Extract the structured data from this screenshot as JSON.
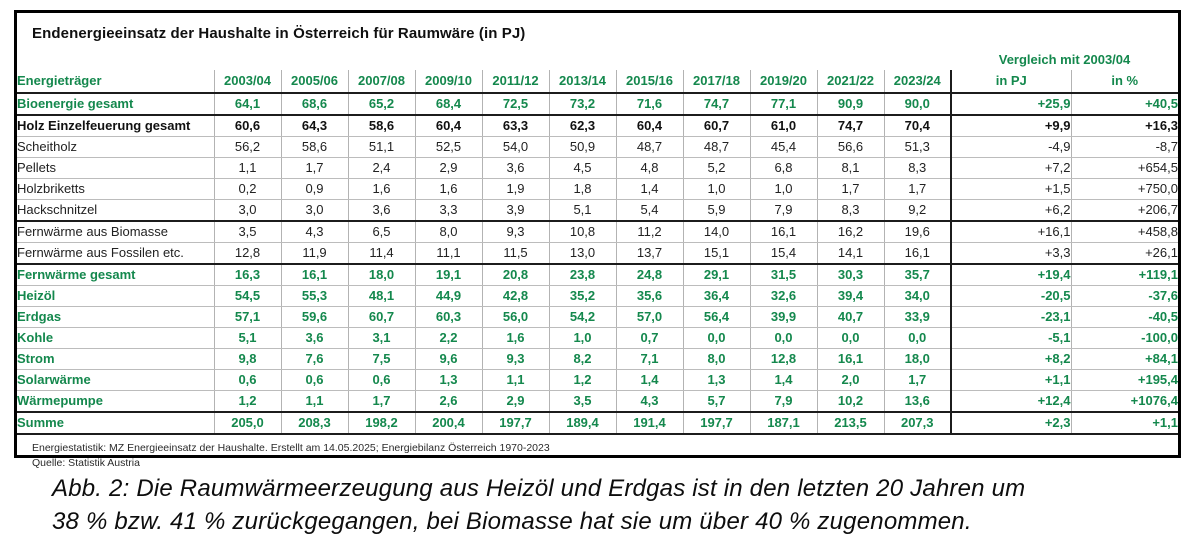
{
  "table": {
    "title": "Endenergieeinsatz der Haushalte in Österreich für Raumwäre (in PJ)",
    "label_header": "Energieträger",
    "year_columns": [
      "2003/04",
      "2005/06",
      "2007/08",
      "2009/10",
      "2011/12",
      "2013/14",
      "2015/16",
      "2017/18",
      "2019/20",
      "2021/22",
      "2023/24"
    ],
    "compare_header": "Vergleich mit 2003/04",
    "compare_sub_headers": [
      "in PJ",
      "in %"
    ],
    "rows": [
      {
        "label": "Bioenergie gesamt",
        "style": "green",
        "values": [
          "64,1",
          "68,6",
          "65,2",
          "68,4",
          "72,5",
          "73,2",
          "71,6",
          "74,7",
          "77,1",
          "90,9",
          "90,0"
        ],
        "pj": "+25,9",
        "pct": "+40,5",
        "thick_below": true
      },
      {
        "label": "Holz Einzelfeuerung gesamt",
        "style": "bold",
        "values": [
          "60,6",
          "64,3",
          "58,6",
          "60,4",
          "63,3",
          "62,3",
          "60,4",
          "60,7",
          "61,0",
          "74,7",
          "70,4"
        ],
        "pj": "+9,9",
        "pct": "+16,3",
        "thick_below": false
      },
      {
        "label": "Scheitholz",
        "style": "plain",
        "values": [
          "56,2",
          "58,6",
          "51,1",
          "52,5",
          "54,0",
          "50,9",
          "48,7",
          "48,7",
          "45,4",
          "56,6",
          "51,3"
        ],
        "pj": "-4,9",
        "pct": "-8,7",
        "thick_below": false
      },
      {
        "label": "Pellets",
        "style": "plain",
        "values": [
          "1,1",
          "1,7",
          "2,4",
          "2,9",
          "3,6",
          "4,5",
          "4,8",
          "5,2",
          "6,8",
          "8,1",
          "8,3"
        ],
        "pj": "+7,2",
        "pct": "+654,5",
        "thick_below": false
      },
      {
        "label": "Holzbriketts",
        "style": "plain",
        "values": [
          "0,2",
          "0,9",
          "1,6",
          "1,6",
          "1,9",
          "1,8",
          "1,4",
          "1,0",
          "1,0",
          "1,7",
          "1,7"
        ],
        "pj": "+1,5",
        "pct": "+750,0",
        "thick_below": false
      },
      {
        "label": "Hackschnitzel",
        "style": "plain",
        "values": [
          "3,0",
          "3,0",
          "3,6",
          "3,3",
          "3,9",
          "5,1",
          "5,4",
          "5,9",
          "7,9",
          "8,3",
          "9,2"
        ],
        "pj": "+6,2",
        "pct": "+206,7",
        "thick_below": true
      },
      {
        "label": "Fernwärme aus Biomasse",
        "style": "plain",
        "values": [
          "3,5",
          "4,3",
          "6,5",
          "8,0",
          "9,3",
          "10,8",
          "11,2",
          "14,0",
          "16,1",
          "16,2",
          "19,6"
        ],
        "pj": "+16,1",
        "pct": "+458,8",
        "thick_below": false
      },
      {
        "label": "Fernwärme aus Fossilen etc.",
        "style": "plain",
        "values": [
          "12,8",
          "11,9",
          "11,4",
          "11,1",
          "11,5",
          "13,0",
          "13,7",
          "15,1",
          "15,4",
          "14,1",
          "16,1"
        ],
        "pj": "+3,3",
        "pct": "+26,1",
        "thick_below": true
      },
      {
        "label": "Fernwärme gesamt",
        "style": "green",
        "values": [
          "16,3",
          "16,1",
          "18,0",
          "19,1",
          "20,8",
          "23,8",
          "24,8",
          "29,1",
          "31,5",
          "30,3",
          "35,7"
        ],
        "pj": "+19,4",
        "pct": "+119,1",
        "thick_below": false
      },
      {
        "label": "Heizöl",
        "style": "green",
        "values": [
          "54,5",
          "55,3",
          "48,1",
          "44,9",
          "42,8",
          "35,2",
          "35,6",
          "36,4",
          "32,6",
          "39,4",
          "34,0"
        ],
        "pj": "-20,5",
        "pct": "-37,6",
        "thick_below": false
      },
      {
        "label": "Erdgas",
        "style": "green",
        "values": [
          "57,1",
          "59,6",
          "60,7",
          "60,3",
          "56,0",
          "54,2",
          "57,0",
          "56,4",
          "39,9",
          "40,7",
          "33,9"
        ],
        "pj": "-23,1",
        "pct": "-40,5",
        "thick_below": false
      },
      {
        "label": "Kohle",
        "style": "green",
        "values": [
          "5,1",
          "3,6",
          "3,1",
          "2,2",
          "1,6",
          "1,0",
          "0,7",
          "0,0",
          "0,0",
          "0,0",
          "0,0"
        ],
        "pj": "-5,1",
        "pct": "-100,0",
        "thick_below": false
      },
      {
        "label": "Strom",
        "style": "green",
        "values": [
          "9,8",
          "7,6",
          "7,5",
          "9,6",
          "9,3",
          "8,2",
          "7,1",
          "8,0",
          "12,8",
          "16,1",
          "18,0"
        ],
        "pj": "+8,2",
        "pct": "+84,1",
        "thick_below": false
      },
      {
        "label": "Solarwärme",
        "style": "green",
        "values": [
          "0,6",
          "0,6",
          "0,6",
          "1,3",
          "1,1",
          "1,2",
          "1,4",
          "1,3",
          "1,4",
          "2,0",
          "1,7"
        ],
        "pj": "+1,1",
        "pct": "+195,4",
        "thick_below": false
      },
      {
        "label": "Wärmepumpe",
        "style": "green",
        "values": [
          "1,2",
          "1,1",
          "1,7",
          "2,6",
          "2,9",
          "3,5",
          "4,3",
          "5,7",
          "7,9",
          "10,2",
          "13,6"
        ],
        "pj": "+12,4",
        "pct": "+1076,4",
        "thick_below": true
      },
      {
        "label": "Summe",
        "style": "green",
        "values": [
          "205,0",
          "208,3",
          "198,2",
          "200,4",
          "197,7",
          "189,4",
          "191,4",
          "197,7",
          "187,1",
          "213,5",
          "207,3"
        ],
        "pj": "+2,3",
        "pct": "+1,1",
        "thick_below": false
      }
    ],
    "footnote_line1": "Energiestatistik: MZ Energieeinsatz der Haushalte. Erstellt am 14.05.2025; Energiebilanz Österreich 1970-2023",
    "footnote_line2": "Quelle: Statistik Austria"
  },
  "caption": {
    "line1": "Abb. 2: Die Raumwärmeerzeugung aus Heizöl und Erdgas ist in den letzten 20 Jahren um",
    "line2": "38 % bzw. 41 % zurückgegangen, bei Biomasse hat sie um über 40 % zugenommen."
  },
  "colors": {
    "accent_green": "#14884d",
    "line_dark": "#1c1c1c",
    "line_light": "#b3b3b3"
  }
}
